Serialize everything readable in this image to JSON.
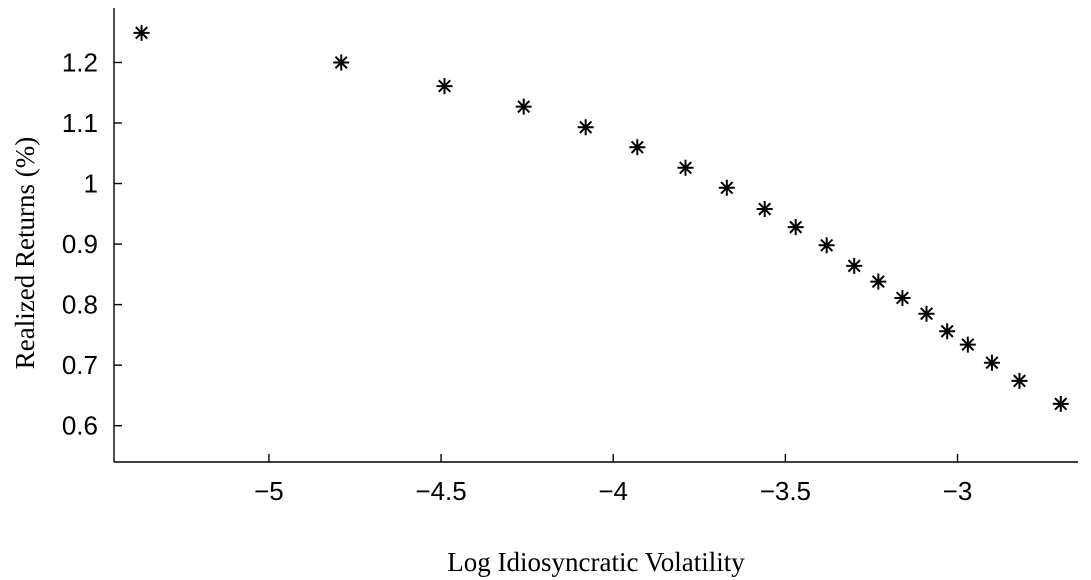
{
  "chart_data": {
    "type": "scatter",
    "xlabel": "Log Idiosyncratic Volatility",
    "ylabel": "Realized Returns (%)",
    "xlim": [
      -5.45,
      -2.65
    ],
    "ylim": [
      0.54,
      1.29
    ],
    "xticks": [
      -5,
      -4.5,
      -4,
      -3.5,
      -3
    ],
    "xtick_labels": [
      "−5",
      "−4.5",
      "−4",
      "−3.5",
      "−3"
    ],
    "yticks": [
      0.6,
      0.7,
      0.8,
      0.9,
      1.0,
      1.1,
      1.2
    ],
    "ytick_labels": [
      "0.6",
      "0.7",
      "0.8",
      "0.9",
      "1",
      "1.1",
      "1.2"
    ],
    "marker": "asterisk",
    "marker_color": "#000000",
    "grid": false,
    "x": [
      -5.37,
      -4.79,
      -4.49,
      -4.26,
      -4.08,
      -3.93,
      -3.79,
      -3.67,
      -3.56,
      -3.47,
      -3.38,
      -3.3,
      -3.23,
      -3.16,
      -3.09,
      -3.03,
      -2.97,
      -2.9,
      -2.82,
      -2.7
    ],
    "y": [
      1.249,
      1.2,
      1.161,
      1.127,
      1.093,
      1.06,
      1.026,
      0.993,
      0.958,
      0.928,
      0.898,
      0.864,
      0.838,
      0.811,
      0.785,
      0.756,
      0.734,
      0.704,
      0.674,
      0.636
    ]
  }
}
